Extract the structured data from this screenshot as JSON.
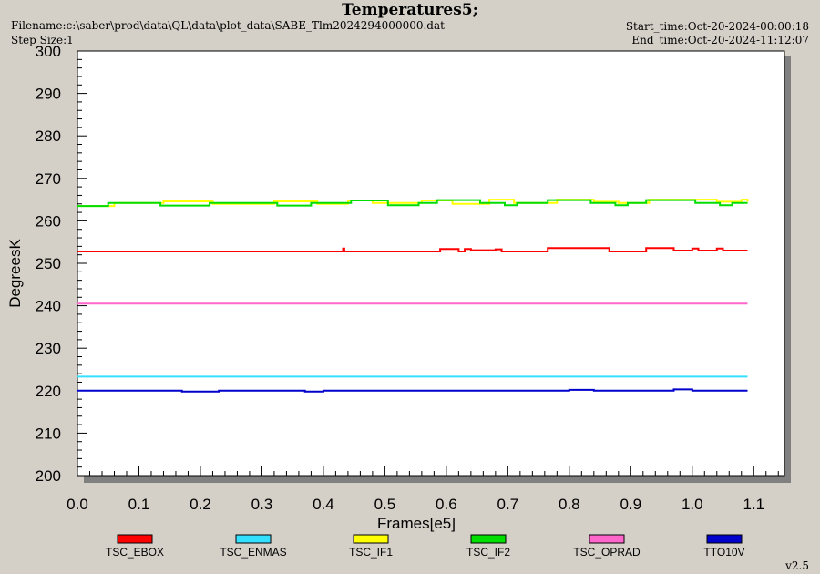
{
  "header": {
    "title": "Temperatures5;",
    "filename": "Filename:c:\\saber\\prod\\data\\QL\\data\\plot_data\\SABE_Tlm2024294000000.dat",
    "step_size": "Step Size:1",
    "start_time": "Start_time:Oct-20-2024-00:00:18",
    "end_time": "End_time:Oct-20-2024-11:12:07"
  },
  "footer": {
    "version": "v2.5"
  },
  "colors": {
    "TSC_EBOX": "#ff0000",
    "TSC_ENMAS": "#33e0ff",
    "TSC_IF1": "#ffff00",
    "TSC_IF2": "#00dd00",
    "TSC_OPRAD": "#ff66cc",
    "TTO10V": "#0000cc"
  },
  "chart_data": {
    "type": "line",
    "xlabel": "Frames[e5]",
    "ylabel": "DegreesK",
    "xlim": [
      0,
      1.15
    ],
    "ylim": [
      200,
      300
    ],
    "xticks": [
      "0.0",
      "0.1",
      "0.2",
      "0.3",
      "0.4",
      "0.5",
      "0.6",
      "0.7",
      "0.8",
      "0.9",
      "1.0",
      "1.1"
    ],
    "yticks": [
      "200",
      "210",
      "220",
      "230",
      "240",
      "250",
      "260",
      "270",
      "280",
      "290",
      "300"
    ],
    "legend_position": "bottom",
    "grid": false,
    "series": [
      {
        "name": "TSC_EBOX",
        "x": [
          0.0,
          0.43,
          0.432,
          0.434,
          0.585,
          0.59,
          0.6,
          0.62,
          0.63,
          0.64,
          0.68,
          0.69,
          0.74,
          0.76,
          0.765,
          0.86,
          0.865,
          0.87,
          0.92,
          0.925,
          0.96,
          0.97,
          1.0,
          1.01,
          1.04,
          1.05,
          1.09
        ],
        "y": [
          252.8,
          252.8,
          253.5,
          252.8,
          252.8,
          253.4,
          253.4,
          252.8,
          253.4,
          253.1,
          253.3,
          252.8,
          252.8,
          252.8,
          253.6,
          253.6,
          252.8,
          252.8,
          252.8,
          253.6,
          253.6,
          253.0,
          253.5,
          253.0,
          253.5,
          253.0,
          253.0
        ]
      },
      {
        "name": "TSC_ENMAS",
        "x": [
          0.0,
          0.5,
          1.09
        ],
        "y": [
          223.3,
          223.3,
          223.3
        ]
      },
      {
        "name": "TSC_IF1",
        "x": [
          0.0,
          0.05,
          0.06,
          0.13,
          0.14,
          0.21,
          0.22,
          0.31,
          0.32,
          0.37,
          0.39,
          0.42,
          0.44,
          0.47,
          0.48,
          0.55,
          0.56,
          0.6,
          0.61,
          0.64,
          0.67,
          0.7,
          0.71,
          0.76,
          0.78,
          0.82,
          0.84,
          0.87,
          0.88,
          0.92,
          0.93,
          0.97,
          0.99,
          1.04,
          1.06,
          1.08,
          1.09
        ],
        "y": [
          263.5,
          263.5,
          264.2,
          264.2,
          264.6,
          264.6,
          264.0,
          264.0,
          264.6,
          264.6,
          264.0,
          264.0,
          264.8,
          264.8,
          264.2,
          264.2,
          264.8,
          264.8,
          264.0,
          264.0,
          265.0,
          265.0,
          264.2,
          264.2,
          265.0,
          265.0,
          264.5,
          264.5,
          264.2,
          264.2,
          265.0,
          265.0,
          265.0,
          264.5,
          264.5,
          265.0,
          264.5
        ]
      },
      {
        "name": "TSC_IF2",
        "x": [
          0.0,
          0.045,
          0.05,
          0.13,
          0.135,
          0.21,
          0.215,
          0.32,
          0.325,
          0.375,
          0.38,
          0.44,
          0.445,
          0.5,
          0.505,
          0.55,
          0.555,
          0.58,
          0.585,
          0.65,
          0.655,
          0.69,
          0.695,
          0.71,
          0.715,
          0.76,
          0.765,
          0.83,
          0.835,
          0.87,
          0.875,
          0.89,
          0.895,
          0.92,
          0.925,
          1.0,
          1.005,
          1.04,
          1.045,
          1.06,
          1.065,
          1.09
        ],
        "y": [
          263.5,
          263.5,
          264.2,
          264.2,
          263.6,
          263.6,
          264.2,
          264.2,
          263.6,
          263.6,
          264.2,
          264.2,
          264.8,
          264.8,
          263.7,
          263.7,
          264.2,
          264.2,
          264.9,
          264.9,
          264.2,
          264.2,
          263.7,
          263.7,
          264.2,
          264.2,
          264.9,
          264.9,
          264.2,
          264.2,
          263.7,
          263.7,
          264.2,
          264.2,
          264.9,
          264.9,
          264.2,
          264.2,
          263.7,
          263.7,
          264.2,
          264.2
        ]
      },
      {
        "name": "TSC_OPRAD",
        "x": [
          0.0,
          0.5,
          1.09
        ],
        "y": [
          240.5,
          240.5,
          240.5
        ]
      },
      {
        "name": "TTO10V",
        "x": [
          0.0,
          0.16,
          0.17,
          0.22,
          0.23,
          0.36,
          0.37,
          0.39,
          0.4,
          0.79,
          0.8,
          0.83,
          0.84,
          0.96,
          0.97,
          1.0,
          1.09
        ],
        "y": [
          220.0,
          220.0,
          219.8,
          219.8,
          220.0,
          220.0,
          219.8,
          219.8,
          220.0,
          220.0,
          220.2,
          220.2,
          220.0,
          220.0,
          220.3,
          220.0,
          220.0
        ]
      }
    ]
  }
}
